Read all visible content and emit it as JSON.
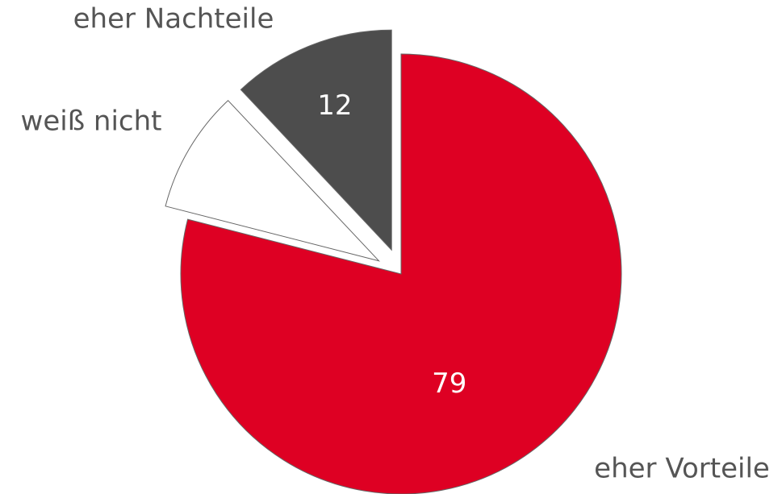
{
  "chart_data": {
    "type": "pie",
    "categories": [
      "eher Vorteile",
      "weiß nicht",
      "eher Nachteile"
    ],
    "values": [
      79,
      9,
      12
    ],
    "value_labels": [
      "79",
      null,
      "12"
    ],
    "colors": [
      "#de0023",
      "#ffffff",
      "#4d4d4d"
    ]
  }
}
